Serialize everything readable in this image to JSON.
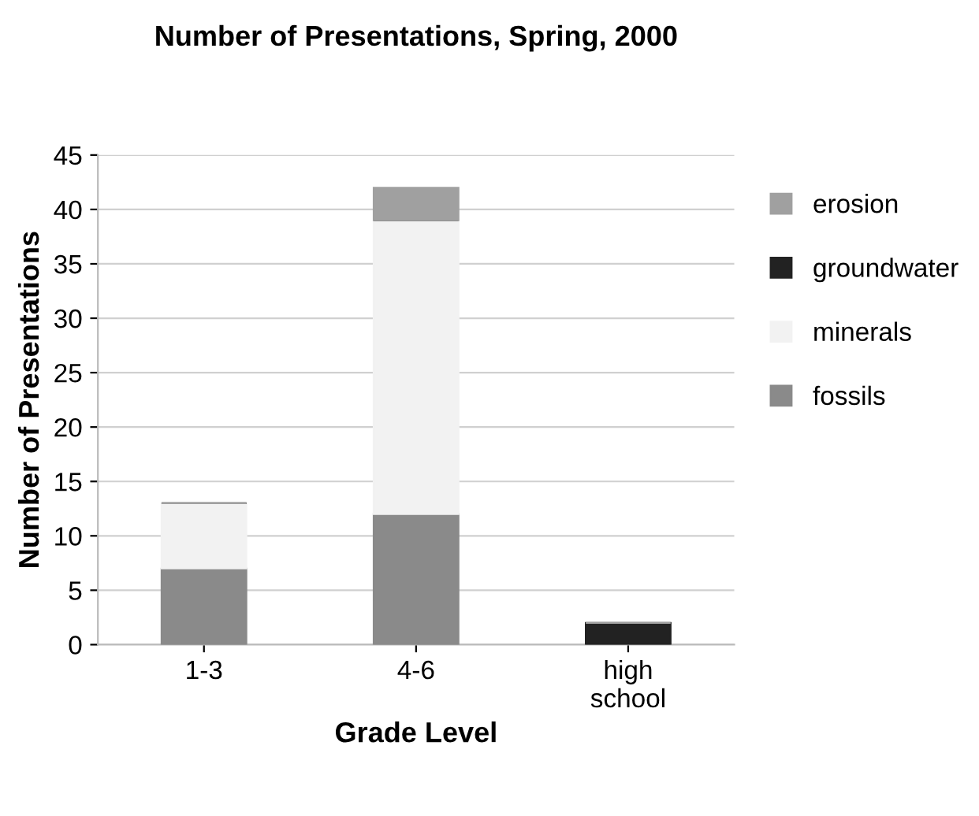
{
  "chart_data": {
    "type": "bar",
    "title": "Number of Presentations, Spring, 2000",
    "xlabel": "Grade Level",
    "ylabel": "Number of Presentations",
    "categories": [
      "1-3",
      "4-6",
      "high\nschool"
    ],
    "stacked": true,
    "series": [
      {
        "name": "fossils",
        "color": "#8a8a8a",
        "values": [
          7,
          12,
          0
        ]
      },
      {
        "name": "minerals",
        "color": "#f2f2f2",
        "values": [
          6,
          27,
          0
        ]
      },
      {
        "name": "groundwater",
        "color": "#222222",
        "values": [
          0,
          0,
          2
        ]
      },
      {
        "name": "erosion",
        "color": "#a0a0a0",
        "values": [
          0,
          3,
          0
        ]
      }
    ],
    "ylim": [
      0,
      45
    ],
    "yticks": [
      0,
      5,
      10,
      15,
      20,
      25,
      30,
      35,
      40,
      45
    ],
    "grid": "y",
    "legend": "right"
  }
}
